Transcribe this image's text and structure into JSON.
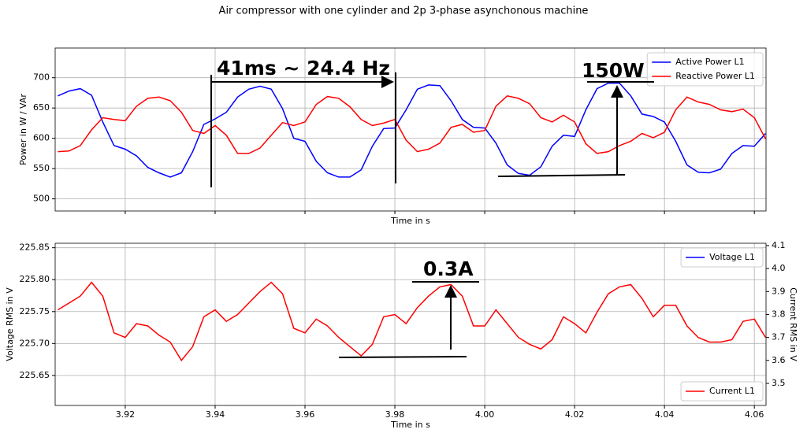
{
  "title": "Air compressor with one cylinder and 2p 3-phase asynchonous machine",
  "chart_data": [
    {
      "type": "line",
      "ylabel": "Power in W / VAr",
      "xlabel": "Time in s",
      "x": [
        3.905,
        3.9075,
        3.91,
        3.9125,
        3.915,
        3.9175,
        3.92,
        3.9225,
        3.925,
        3.9275,
        3.93,
        3.9325,
        3.935,
        3.9375,
        3.94,
        3.9425,
        3.945,
        3.9475,
        3.95,
        3.9525,
        3.955,
        3.9575,
        3.96,
        3.9625,
        3.965,
        3.9675,
        3.97,
        3.9725,
        3.975,
        3.9775,
        3.98,
        3.9825,
        3.985,
        3.9875,
        3.99,
        3.9925,
        3.995,
        3.9975,
        4.0,
        4.0025,
        4.005,
        4.0075,
        4.01,
        4.0125,
        4.015,
        4.0175,
        4.02,
        4.0225,
        4.025,
        4.0275,
        4.03,
        4.0325,
        4.035,
        4.0375,
        4.04,
        4.0425,
        4.045,
        4.0475,
        4.05,
        4.0525,
        4.055,
        4.0575,
        4.06,
        4.0625
      ],
      "series": [
        {
          "name": "Active Power L1",
          "color": "#0000ff",
          "values": [
            670,
            678,
            682,
            671,
            627,
            588,
            582,
            571,
            552,
            543,
            536,
            543,
            578,
            623,
            632,
            643,
            668,
            681,
            686,
            681,
            649,
            600,
            595,
            562,
            543,
            536,
            536,
            548,
            587,
            616,
            617,
            647,
            681,
            688,
            687,
            662,
            631,
            618,
            617,
            592,
            556,
            542,
            539,
            553,
            587,
            605,
            603,
            647,
            682,
            691,
            691,
            670,
            640,
            636,
            627,
            595,
            556,
            544,
            543,
            549,
            575,
            588,
            587,
            608
          ]
        },
        {
          "name": "Reactive Power L1",
          "color": "#ff0000",
          "values": [
            578,
            579,
            588,
            614,
            634,
            631,
            629,
            653,
            666,
            668,
            662,
            643,
            613,
            608,
            621,
            605,
            575,
            575,
            584,
            605,
            626,
            621,
            627,
            656,
            669,
            666,
            652,
            631,
            621,
            625,
            631,
            597,
            578,
            582,
            592,
            618,
            623,
            610,
            613,
            653,
            670,
            666,
            657,
            634,
            627,
            638,
            627,
            591,
            575,
            578,
            588,
            595,
            608,
            601,
            610,
            647,
            668,
            660,
            656,
            647,
            644,
            648,
            634,
            599
          ]
        }
      ],
      "xlim": [
        3.9044,
        4.0626
      ],
      "xticks": [
        3.92,
        3.94,
        3.96,
        3.98,
        4,
        4.02,
        4.04,
        4.06
      ],
      "xticklabels": false,
      "ylim": [
        480,
        749
      ],
      "yticks": [
        500,
        550,
        600,
        650,
        700
      ],
      "grid": true,
      "legend": "upper right",
      "annotations": [
        "41ms ~ 24.4 Hz",
        "150W"
      ]
    },
    {
      "type": "line",
      "ylabel": "Voltage RMS in V",
      "y2label": "Current RMS in V",
      "xlabel": "Time in s",
      "x": [
        3.905,
        3.9075,
        3.91,
        3.9125,
        3.915,
        3.9175,
        3.92,
        3.9225,
        3.925,
        3.9275,
        3.93,
        3.9325,
        3.935,
        3.9375,
        3.94,
        3.9425,
        3.945,
        3.9475,
        3.95,
        3.9525,
        3.955,
        3.9575,
        3.96,
        3.9625,
        3.965,
        3.9675,
        3.97,
        3.9725,
        3.975,
        3.9775,
        3.98,
        3.9825,
        3.985,
        3.9875,
        3.99,
        3.9925,
        3.995,
        3.9975,
        4.0,
        4.0025,
        4.005,
        4.0075,
        4.01,
        4.0125,
        4.015,
        4.0175,
        4.02,
        4.0225,
        4.025,
        4.0275,
        4.03,
        4.0325,
        4.035,
        4.0375,
        4.04,
        4.0425,
        4.045,
        4.0475,
        4.05,
        4.0525,
        4.055,
        4.0575,
        4.06,
        4.0625
      ],
      "series": [
        {
          "name": "Voltage L1",
          "color": "#0000ff",
          "legend": "upper right",
          "values": [
            null,
            null,
            null,
            null,
            null,
            null,
            null,
            null,
            null,
            null,
            null,
            null,
            null,
            null,
            null,
            null,
            null,
            null,
            null,
            null,
            null,
            null,
            null,
            null,
            null,
            null,
            null,
            null,
            null,
            null,
            null,
            null,
            null,
            null,
            null,
            null,
            null,
            null,
            null,
            null,
            null,
            null,
            null,
            null,
            null,
            null,
            null,
            null,
            null,
            null,
            null,
            null,
            null,
            null,
            null,
            null,
            null,
            null,
            null,
            null,
            null,
            null,
            null,
            null
          ]
        },
        {
          "name": "Current L1",
          "color": "#ff0000",
          "axis": "y2",
          "legend": "lower right",
          "values": [
            3.82,
            3.85,
            3.88,
            3.94,
            3.88,
            3.72,
            3.7,
            3.76,
            3.75,
            3.71,
            3.68,
            3.6,
            3.66,
            3.79,
            3.82,
            3.77,
            3.8,
            3.85,
            3.9,
            3.94,
            3.89,
            3.74,
            3.72,
            3.78,
            3.75,
            3.7,
            3.66,
            3.62,
            3.67,
            3.79,
            3.8,
            3.76,
            3.83,
            3.88,
            3.92,
            3.93,
            3.88,
            3.75,
            3.75,
            3.82,
            3.76,
            3.7,
            3.67,
            3.65,
            3.69,
            3.79,
            3.76,
            3.72,
            3.81,
            3.89,
            3.92,
            3.93,
            3.87,
            3.79,
            3.84,
            3.84,
            3.75,
            3.7,
            3.68,
            3.68,
            3.69,
            3.77,
            3.78,
            3.7
          ]
        }
      ],
      "xlim": [
        3.9044,
        4.0626
      ],
      "xticks": [
        3.92,
        3.94,
        3.96,
        3.98,
        {
          "value": 4,
          "label": "4.00"
        },
        4.02,
        4.04,
        4.06
      ],
      "ylim": [
        225.603,
        225.857
      ],
      "yticks": [
        225.65,
        {
          "value": 225.7,
          "label": "225.70"
        },
        225.75,
        {
          "value": 225.8,
          "label": "225.80"
        },
        225.85
      ],
      "y2lim": [
        3.404,
        4.11
      ],
      "y2ticks": [
        3.5,
        3.6,
        3.7,
        3.8,
        3.9,
        {
          "value": 4,
          "label": "4.0"
        },
        4.1
      ],
      "grid": true,
      "annotations": [
        "0.3A"
      ]
    }
  ]
}
